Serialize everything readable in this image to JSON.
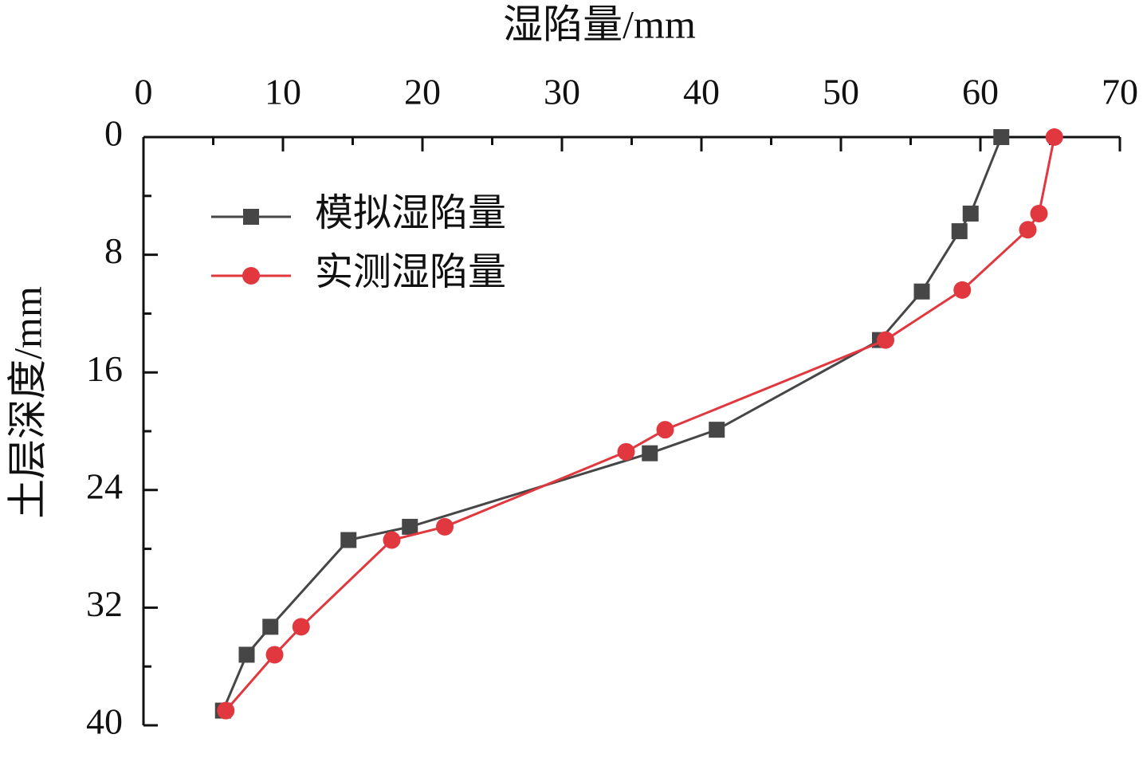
{
  "chart_data": {
    "type": "line",
    "x_label": "湿陷量/mm",
    "y_label": "土层深度/mm",
    "xlim": [
      0,
      70
    ],
    "xticks": [
      0,
      10,
      20,
      30,
      40,
      50,
      60,
      70
    ],
    "xminorticks": [
      5,
      15,
      25,
      35,
      45,
      55,
      65
    ],
    "ylim": [
      0,
      40
    ],
    "yticks": [
      0,
      8,
      16,
      24,
      32,
      40
    ],
    "yminorticks": [
      4,
      12,
      20,
      28,
      36
    ],
    "y_inverted": true,
    "x_axis_position": "top",
    "legend": "upper left",
    "series": [
      {
        "name": "模拟湿陷量",
        "color": "#464646",
        "marker": "square",
        "x": [
          61.5,
          59.3,
          58.5,
          55.8,
          52.8,
          41.1,
          36.3,
          19.1,
          14.7,
          9.1,
          7.4,
          5.7
        ],
        "values": [
          0,
          5.2,
          6.4,
          10.5,
          13.8,
          19.9,
          21.5,
          26.5,
          27.4,
          33.3,
          35.2,
          39.0
        ]
      },
      {
        "name": "实测湿陷量",
        "color": "#e0383e",
        "marker": "circle",
        "x": [
          65.3,
          64.2,
          63.4,
          58.7,
          53.2,
          37.4,
          34.6,
          21.6,
          17.8,
          11.3,
          9.4,
          5.9
        ],
        "values": [
          0,
          5.2,
          6.3,
          10.4,
          13.8,
          19.9,
          21.4,
          26.5,
          27.4,
          33.3,
          35.2,
          39.0
        ]
      }
    ]
  }
}
